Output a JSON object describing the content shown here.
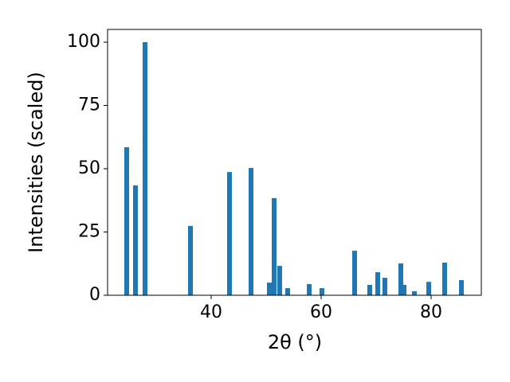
{
  "chart_data": {
    "type": "bar",
    "xlabel": "2θ (°)",
    "ylabel": "Intensities (scaled)",
    "x": [
      24.64,
      26.23,
      27.97,
      36.23,
      43.33,
      47.25,
      50.58,
      51.45,
      52.46,
      53.91,
      57.83,
      60.14,
      66.09,
      68.84,
      70.29,
      71.59,
      74.49,
      75.07,
      76.96,
      79.57,
      82.46,
      85.51
    ],
    "values": [
      58.5,
      43.4,
      100,
      27.4,
      48.7,
      50.3,
      5.0,
      38.4,
      11.6,
      2.8,
      4.4,
      2.8,
      17.6,
      4.1,
      9.1,
      6.9,
      12.6,
      4.1,
      1.6,
      5.3,
      12.9,
      6.0
    ],
    "color": "#1f77b4",
    "xlim": [
      21.16,
      89.13
    ],
    "ylim": [
      0,
      105.03
    ],
    "xticks": [
      40,
      60,
      80
    ],
    "yticks": [
      0,
      25,
      50,
      75,
      100
    ],
    "grid": false
  }
}
